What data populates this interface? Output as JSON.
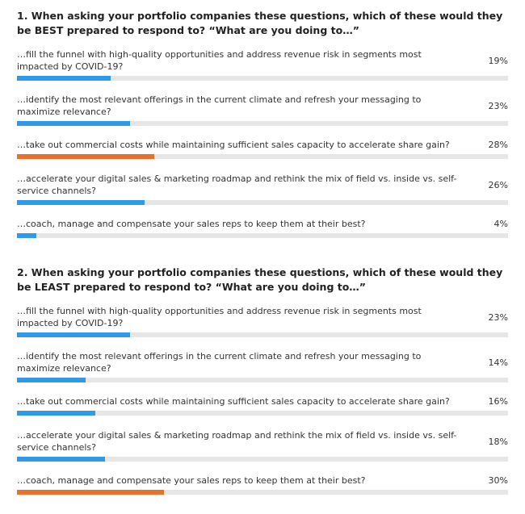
{
  "colors": {
    "bar_default": "#2e9bea",
    "bar_highlight": "#e8702a",
    "track": "#e6e6e6"
  },
  "polls": [
    {
      "question": "1. When asking your portfolio companies these questions, which of these would they be BEST prepared to respond to? “What are you doing to…”",
      "options": [
        {
          "label": "…fill the funnel with high-quality opportunities and address revenue risk in segments most impacted by COVID-19?",
          "percent_label": "19%",
          "value": 19,
          "highlight": false
        },
        {
          "label": "…identify the most relevant offerings in the current climate and refresh your   messaging to maximize relevance?",
          "percent_label": "23%",
          "value": 23,
          "highlight": false
        },
        {
          "label": "…take out commercial costs while maintaining sufficient sales capacity to accelerate share gain?",
          "percent_label": "28%",
          "value": 28,
          "highlight": true
        },
        {
          "label": "…accelerate your digital sales & marketing roadmap and rethink the mix of field vs. inside vs. self-service channels?",
          "percent_label": "26%",
          "value": 26,
          "highlight": false
        },
        {
          "label": "…coach, manage and compensate your sales reps to keep them at their best?",
          "percent_label": "4%",
          "value": 4,
          "highlight": false
        }
      ]
    },
    {
      "question": "2. When asking your portfolio companies these questions, which of these would they be LEAST prepared to respond to? “What are you doing to…”",
      "options": [
        {
          "label": "…fill the funnel with high-quality opportunities and address revenue risk in segments most impacted by COVID-19?",
          "percent_label": "23%",
          "value": 23,
          "highlight": false
        },
        {
          "label": "…identify the most relevant offerings in the current climate and refresh your   messaging to maximize relevance?",
          "percent_label": "14%",
          "value": 14,
          "highlight": false
        },
        {
          "label": "…take out commercial costs while maintaining sufficient sales capacity to accelerate share gain?",
          "percent_label": "16%",
          "value": 16,
          "highlight": false
        },
        {
          "label": "…accelerate your digital sales & marketing roadmap and rethink the mix of field vs. inside vs. self-service channels?",
          "percent_label": "18%",
          "value": 18,
          "highlight": false
        },
        {
          "label": "…coach, manage and compensate your sales reps to keep them at their best?",
          "percent_label": "30%",
          "value": 30,
          "highlight": true
        }
      ]
    }
  ]
}
